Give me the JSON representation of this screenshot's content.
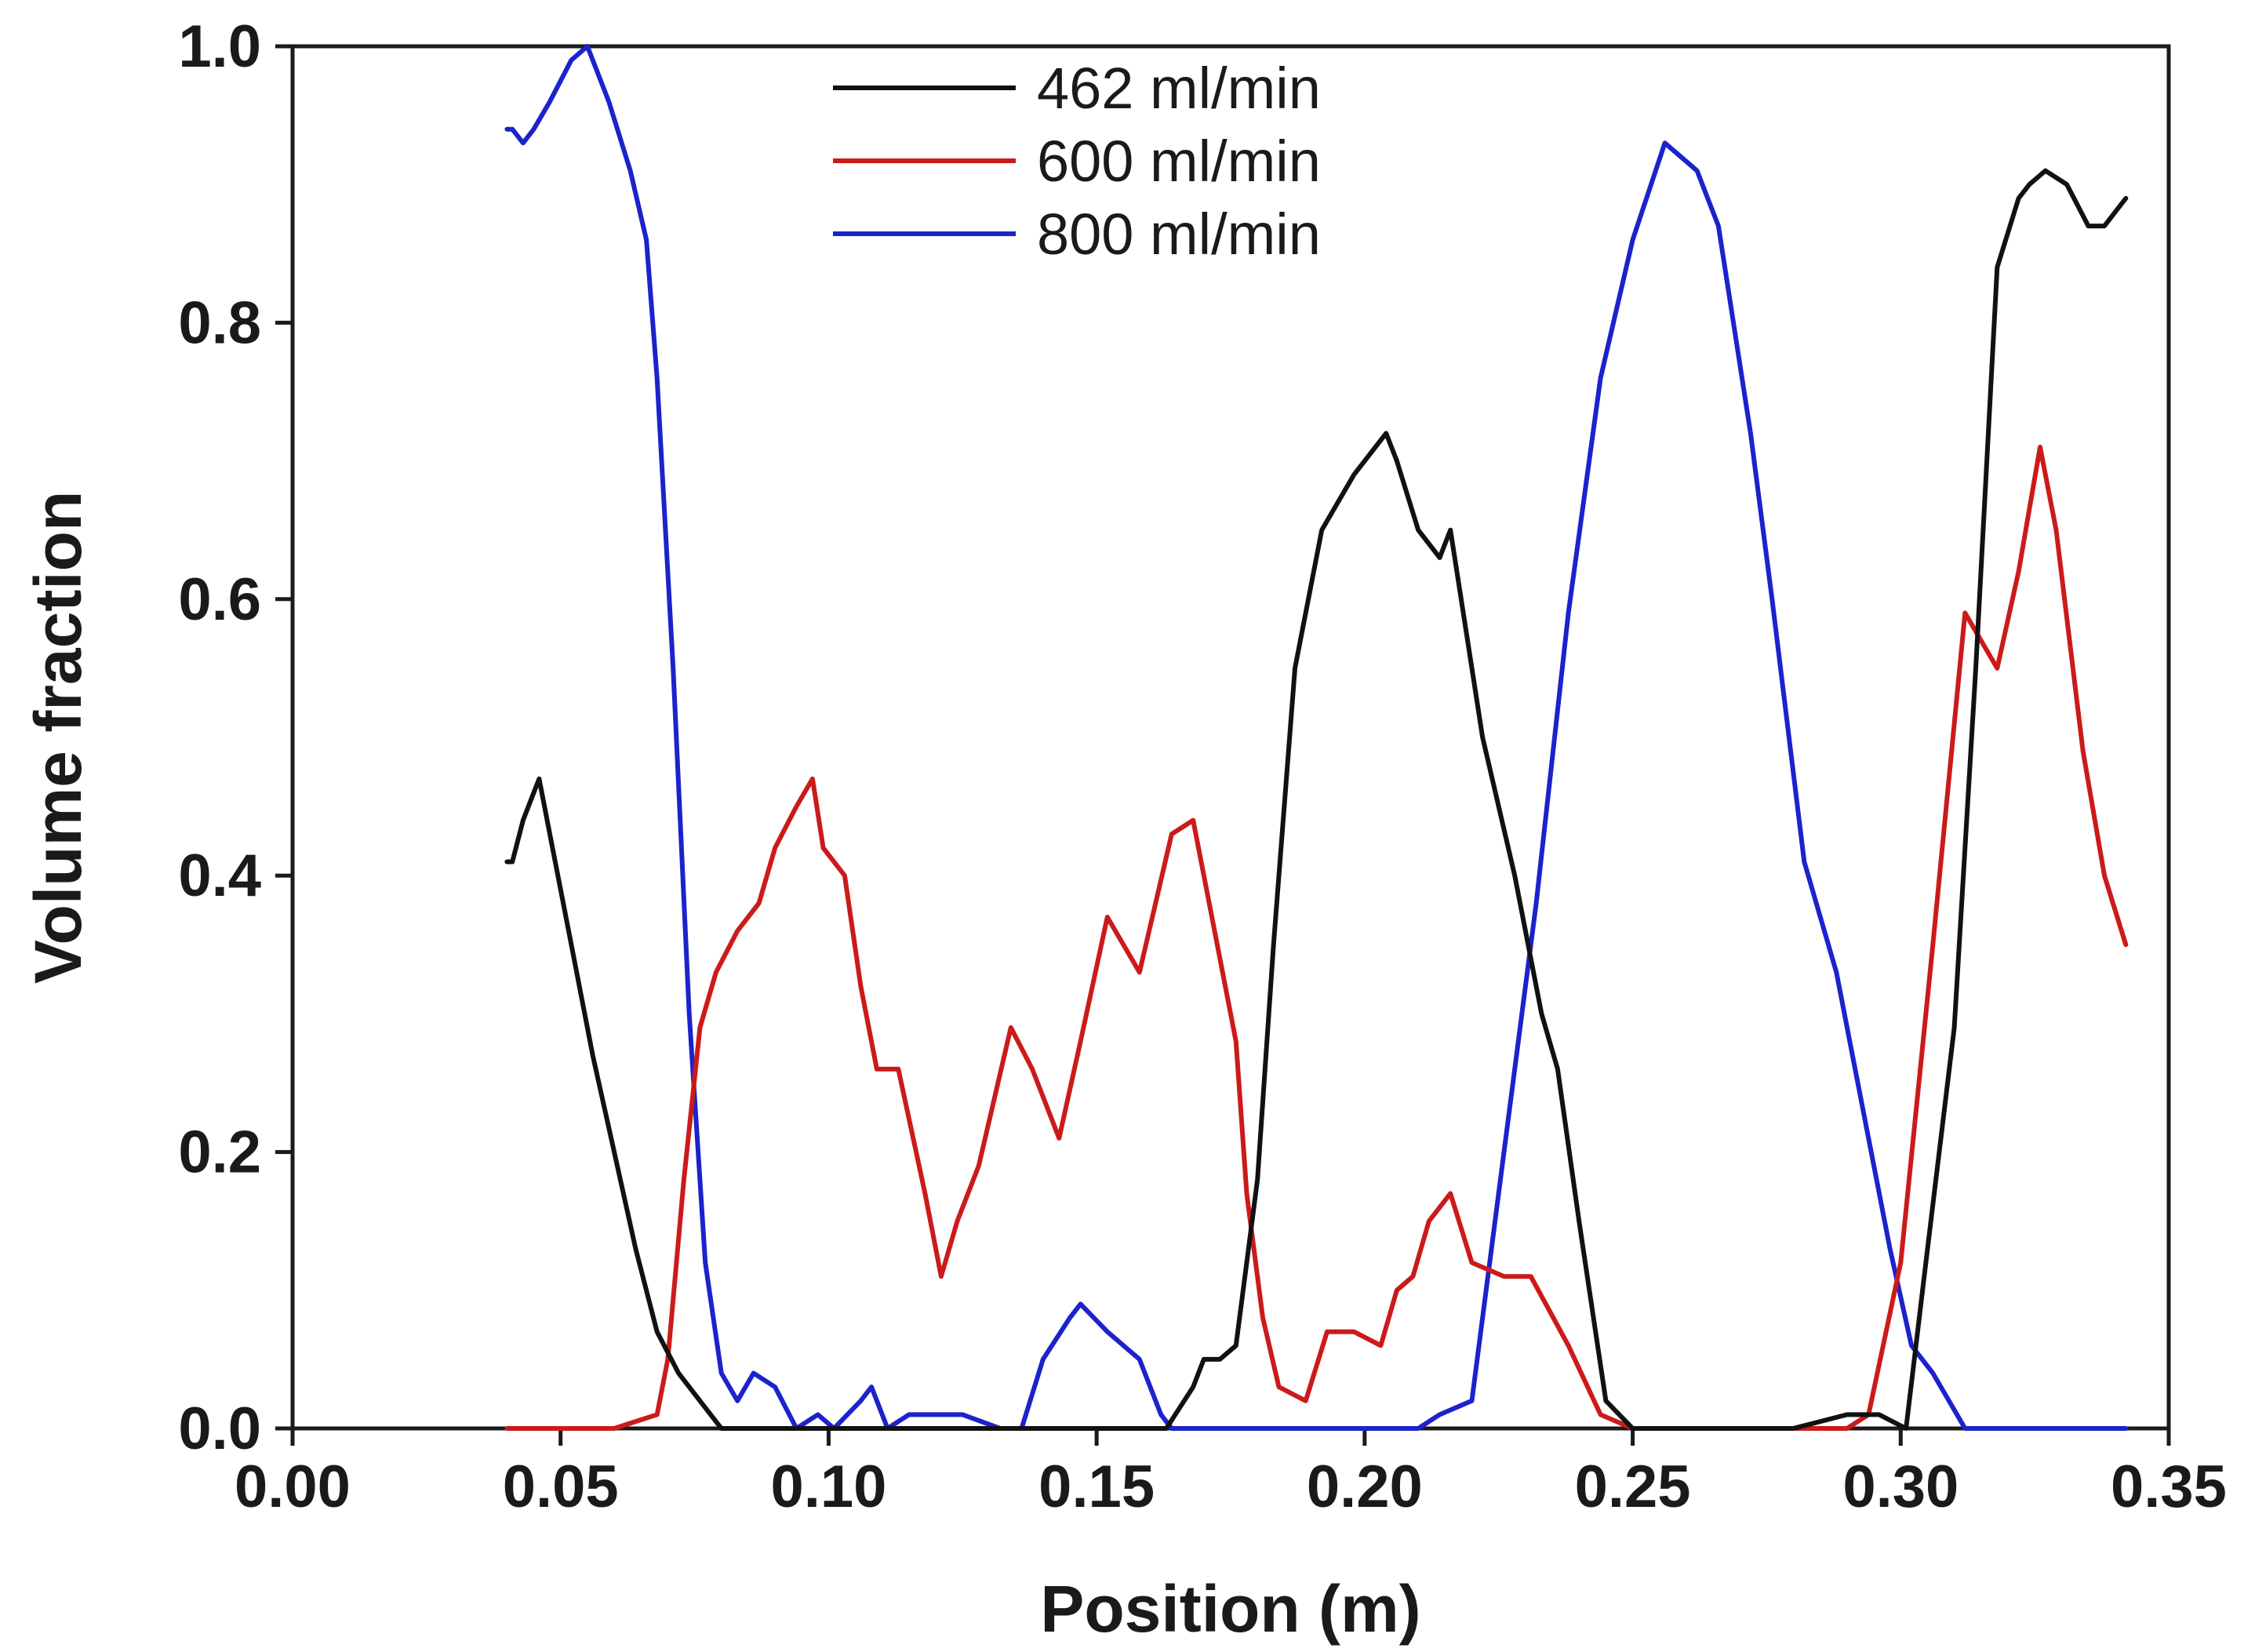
{
  "chart_data": {
    "type": "line",
    "title": "",
    "xlabel": "Position (m)",
    "ylabel": "Volume fraction",
    "xlim": [
      0.0,
      0.35
    ],
    "ylim": [
      0.0,
      1.0
    ],
    "grid": false,
    "legend_position": "top-center",
    "x_ticks": [
      {
        "value": 0.0,
        "label": "0.00"
      },
      {
        "value": 0.05,
        "label": "0.05"
      },
      {
        "value": 0.1,
        "label": "0.10"
      },
      {
        "value": 0.15,
        "label": "0.15"
      },
      {
        "value": 0.2,
        "label": "0.20"
      },
      {
        "value": 0.25,
        "label": "0.25"
      },
      {
        "value": 0.3,
        "label": "0.30"
      },
      {
        "value": 0.35,
        "label": "0.35"
      }
    ],
    "y_ticks": [
      {
        "value": 0.0,
        "label": "0.0"
      },
      {
        "value": 0.2,
        "label": "0.2"
      },
      {
        "value": 0.4,
        "label": "0.4"
      },
      {
        "value": 0.6,
        "label": "0.6"
      },
      {
        "value": 0.8,
        "label": "0.8"
      },
      {
        "value": 1.0,
        "label": "1.0"
      }
    ],
    "series": [
      {
        "name": "462 ml/min",
        "color": "#111111",
        "points": [
          [
            0.04,
            0.41
          ],
          [
            0.041,
            0.41
          ],
          [
            0.043,
            0.44
          ],
          [
            0.045,
            0.46
          ],
          [
            0.046,
            0.47
          ],
          [
            0.048,
            0.43
          ],
          [
            0.052,
            0.35
          ],
          [
            0.056,
            0.27
          ],
          [
            0.06,
            0.2
          ],
          [
            0.064,
            0.13
          ],
          [
            0.068,
            0.07
          ],
          [
            0.072,
            0.04
          ],
          [
            0.076,
            0.02
          ],
          [
            0.08,
            0.0
          ],
          [
            0.12,
            0.0
          ],
          [
            0.14,
            0.0
          ],
          [
            0.16,
            0.0
          ],
          [
            0.163,
            0.0
          ],
          [
            0.168,
            0.03
          ],
          [
            0.17,
            0.05
          ],
          [
            0.173,
            0.05
          ],
          [
            0.176,
            0.06
          ],
          [
            0.18,
            0.18
          ],
          [
            0.183,
            0.35
          ],
          [
            0.187,
            0.55
          ],
          [
            0.192,
            0.65
          ],
          [
            0.198,
            0.69
          ],
          [
            0.204,
            0.72
          ],
          [
            0.206,
            0.7
          ],
          [
            0.21,
            0.65
          ],
          [
            0.214,
            0.63
          ],
          [
            0.216,
            0.65
          ],
          [
            0.218,
            0.6
          ],
          [
            0.222,
            0.5
          ],
          [
            0.228,
            0.4
          ],
          [
            0.233,
            0.3
          ],
          [
            0.236,
            0.26
          ],
          [
            0.24,
            0.15
          ],
          [
            0.245,
            0.02
          ],
          [
            0.25,
            0.0
          ],
          [
            0.28,
            0.0
          ],
          [
            0.29,
            0.01
          ],
          [
            0.296,
            0.01
          ],
          [
            0.301,
            0.0
          ],
          [
            0.305,
            0.13
          ],
          [
            0.31,
            0.29
          ],
          [
            0.314,
            0.55
          ],
          [
            0.318,
            0.84
          ],
          [
            0.322,
            0.89
          ],
          [
            0.324,
            0.9
          ],
          [
            0.327,
            0.91
          ],
          [
            0.331,
            0.9
          ],
          [
            0.335,
            0.87
          ],
          [
            0.338,
            0.87
          ],
          [
            0.342,
            0.89
          ]
        ]
      },
      {
        "name": "600 ml/min",
        "color": "#cc1a1a",
        "points": [
          [
            0.04,
            0.0
          ],
          [
            0.06,
            0.0
          ],
          [
            0.068,
            0.01
          ],
          [
            0.07,
            0.05
          ],
          [
            0.073,
            0.18
          ],
          [
            0.076,
            0.29
          ],
          [
            0.079,
            0.33
          ],
          [
            0.083,
            0.36
          ],
          [
            0.087,
            0.38
          ],
          [
            0.09,
            0.42
          ],
          [
            0.094,
            0.45
          ],
          [
            0.097,
            0.47
          ],
          [
            0.099,
            0.42
          ],
          [
            0.103,
            0.4
          ],
          [
            0.106,
            0.32
          ],
          [
            0.109,
            0.26
          ],
          [
            0.113,
            0.26
          ],
          [
            0.118,
            0.17
          ],
          [
            0.121,
            0.11
          ],
          [
            0.124,
            0.15
          ],
          [
            0.128,
            0.19
          ],
          [
            0.134,
            0.29
          ],
          [
            0.138,
            0.26
          ],
          [
            0.143,
            0.21
          ],
          [
            0.147,
            0.28
          ],
          [
            0.152,
            0.37
          ],
          [
            0.158,
            0.33
          ],
          [
            0.164,
            0.43
          ],
          [
            0.168,
            0.44
          ],
          [
            0.172,
            0.36
          ],
          [
            0.176,
            0.28
          ],
          [
            0.178,
            0.17
          ],
          [
            0.181,
            0.08
          ],
          [
            0.184,
            0.03
          ],
          [
            0.189,
            0.02
          ],
          [
            0.193,
            0.07
          ],
          [
            0.198,
            0.07
          ],
          [
            0.203,
            0.06
          ],
          [
            0.206,
            0.1
          ],
          [
            0.209,
            0.11
          ],
          [
            0.212,
            0.15
          ],
          [
            0.216,
            0.17
          ],
          [
            0.22,
            0.12
          ],
          [
            0.226,
            0.11
          ],
          [
            0.231,
            0.11
          ],
          [
            0.238,
            0.06
          ],
          [
            0.244,
            0.01
          ],
          [
            0.25,
            0.0
          ],
          [
            0.29,
            0.0
          ],
          [
            0.294,
            0.01
          ],
          [
            0.3,
            0.12
          ],
          [
            0.306,
            0.35
          ],
          [
            0.312,
            0.59
          ],
          [
            0.318,
            0.55
          ],
          [
            0.322,
            0.62
          ],
          [
            0.326,
            0.71
          ],
          [
            0.329,
            0.65
          ],
          [
            0.334,
            0.49
          ],
          [
            0.338,
            0.4
          ],
          [
            0.342,
            0.35
          ]
        ]
      },
      {
        "name": "800 ml/min",
        "color": "#1c22cc",
        "points": [
          [
            0.04,
            0.94
          ],
          [
            0.041,
            0.94
          ],
          [
            0.043,
            0.93
          ],
          [
            0.045,
            0.94
          ],
          [
            0.048,
            0.96
          ],
          [
            0.052,
            0.99
          ],
          [
            0.055,
            1.0
          ],
          [
            0.059,
            0.96
          ],
          [
            0.063,
            0.91
          ],
          [
            0.066,
            0.86
          ],
          [
            0.068,
            0.76
          ],
          [
            0.071,
            0.55
          ],
          [
            0.074,
            0.3
          ],
          [
            0.077,
            0.12
          ],
          [
            0.08,
            0.04
          ],
          [
            0.083,
            0.02
          ],
          [
            0.086,
            0.04
          ],
          [
            0.09,
            0.03
          ],
          [
            0.094,
            0.0
          ],
          [
            0.098,
            0.01
          ],
          [
            0.101,
            0.0
          ],
          [
            0.106,
            0.02
          ],
          [
            0.108,
            0.03
          ],
          [
            0.111,
            0.0
          ],
          [
            0.115,
            0.01
          ],
          [
            0.12,
            0.01
          ],
          [
            0.125,
            0.01
          ],
          [
            0.132,
            0.0
          ],
          [
            0.136,
            0.0
          ],
          [
            0.14,
            0.05
          ],
          [
            0.145,
            0.08
          ],
          [
            0.147,
            0.09
          ],
          [
            0.152,
            0.07
          ],
          [
            0.158,
            0.05
          ],
          [
            0.162,
            0.01
          ],
          [
            0.164,
            0.0
          ],
          [
            0.21,
            0.0
          ],
          [
            0.214,
            0.01
          ],
          [
            0.22,
            0.02
          ],
          [
            0.226,
            0.2
          ],
          [
            0.232,
            0.38
          ],
          [
            0.238,
            0.59
          ],
          [
            0.244,
            0.76
          ],
          [
            0.25,
            0.86
          ],
          [
            0.256,
            0.93
          ],
          [
            0.262,
            0.91
          ],
          [
            0.266,
            0.87
          ],
          [
            0.272,
            0.72
          ],
          [
            0.276,
            0.6
          ],
          [
            0.282,
            0.41
          ],
          [
            0.288,
            0.33
          ],
          [
            0.292,
            0.25
          ],
          [
            0.298,
            0.13
          ],
          [
            0.302,
            0.06
          ],
          [
            0.306,
            0.04
          ],
          [
            0.312,
            0.0
          ],
          [
            0.342,
            0.0
          ]
        ]
      }
    ]
  }
}
